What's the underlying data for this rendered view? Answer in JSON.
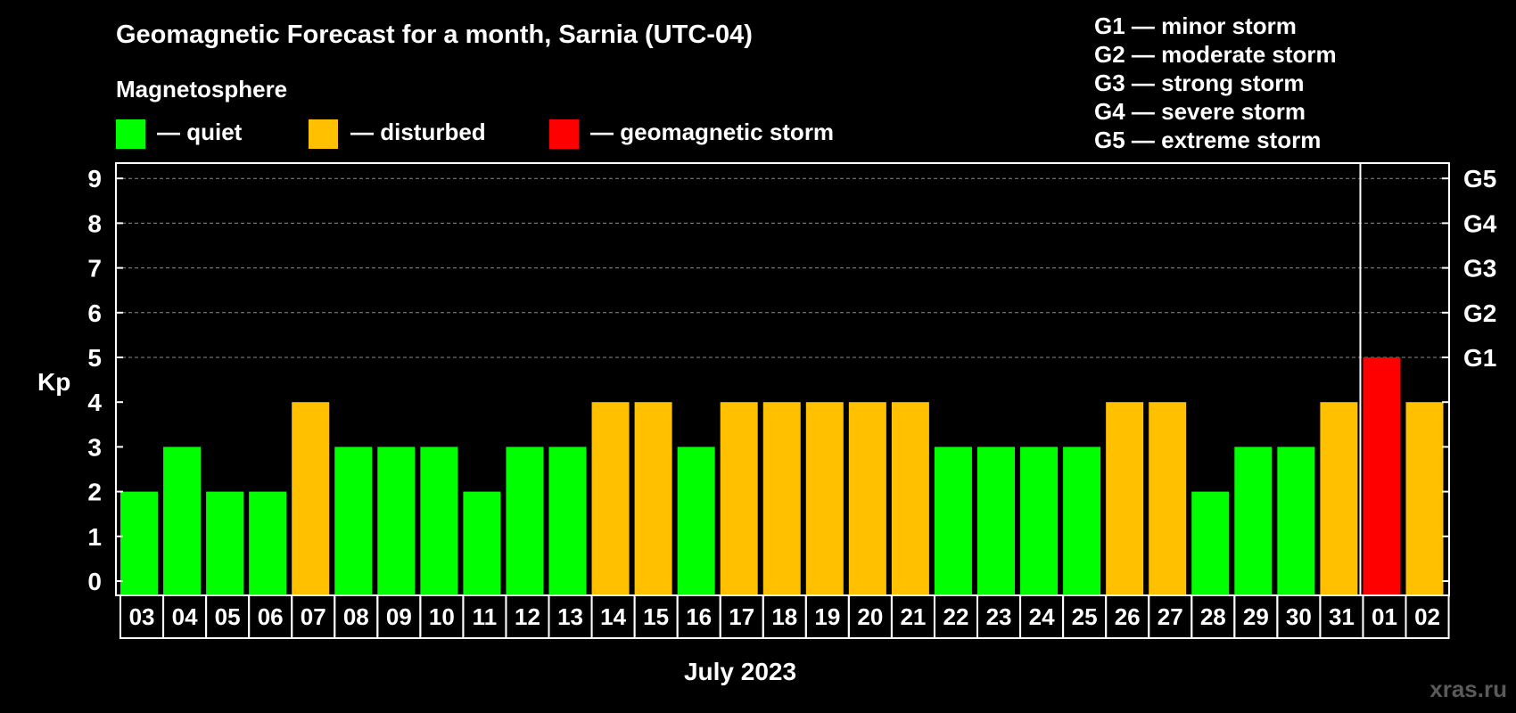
{
  "chart_data": {
    "type": "bar",
    "title": "Geomagnetic Forecast for a month, Sarnia (UTC-04)",
    "legend_title": "Magnetosphere",
    "legend": [
      {
        "label": "— quiet",
        "color": "#00ff00"
      },
      {
        "label": "— disturbed",
        "color": "#ffc000"
      },
      {
        "label": "— geomagnetic storm",
        "color": "#ff0000"
      }
    ],
    "storm_scale": [
      "G1 — minor storm",
      "G2 — moderate storm",
      "G3 — strong storm",
      "G4 — severe storm",
      "G5 — extreme storm"
    ],
    "ylabel": "Kp",
    "xlabel": "July 2023",
    "ylim": [
      0,
      9
    ],
    "y_ticks": [
      0,
      1,
      2,
      3,
      4,
      5,
      6,
      7,
      8,
      9
    ],
    "right_axis_ticks": [
      {
        "y": 5,
        "label": "G1"
      },
      {
        "y": 6,
        "label": "G2"
      },
      {
        "y": 7,
        "label": "G3"
      },
      {
        "y": 8,
        "label": "G4"
      },
      {
        "y": 9,
        "label": "G5"
      }
    ],
    "grid": "dashed horizontal at Kp 5-9",
    "categories": [
      "03",
      "04",
      "05",
      "06",
      "07",
      "08",
      "09",
      "10",
      "11",
      "12",
      "13",
      "14",
      "15",
      "16",
      "17",
      "18",
      "19",
      "20",
      "21",
      "22",
      "23",
      "24",
      "25",
      "26",
      "27",
      "28",
      "29",
      "30",
      "31",
      "01",
      "02"
    ],
    "values": [
      2,
      3,
      2,
      2,
      4,
      3,
      3,
      3,
      2,
      3,
      3,
      4,
      4,
      3,
      4,
      4,
      4,
      4,
      4,
      3,
      3,
      3,
      3,
      4,
      4,
      2,
      3,
      3,
      4,
      5,
      4
    ],
    "colors": {
      "quiet": "#00ff00",
      "disturbed": "#ffc000",
      "storm": "#ff0000"
    },
    "month_separator_after": "31"
  },
  "watermark": "xras.ru"
}
